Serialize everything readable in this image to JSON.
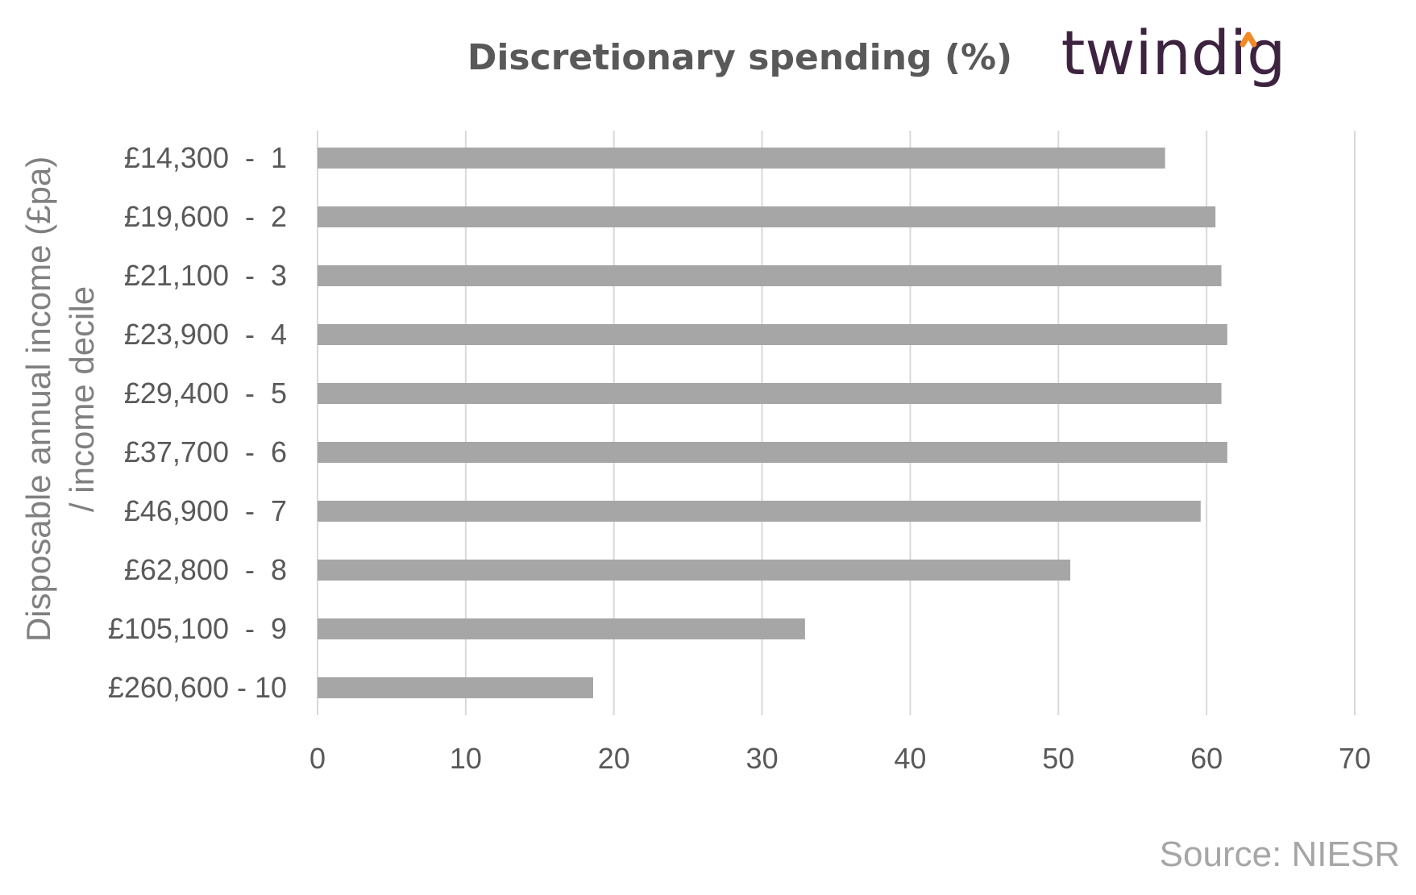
{
  "branding": {
    "logo_text": "twindig",
    "logo_colors": {
      "text": "#3d2340",
      "accent": "#f08a24"
    }
  },
  "source_note": "Source: NIESR",
  "chart_data": {
    "type": "bar",
    "orientation": "horizontal",
    "title": "Discretionary spending  (%)",
    "ylabel_lines": [
      "Disposable annual income (£pa)",
      "/ income decile"
    ],
    "xlabel": "",
    "categories": [
      "£14,300  -  1",
      "£19,600  -  2",
      "£21,100  -  3",
      "£23,900  -  4",
      "£29,400  -  5",
      "£37,700  -  6",
      "£46,900  -  7",
      "£62,800  -  8",
      "£105,100  -  9",
      "£260,600 - 10"
    ],
    "values": [
      57.2,
      60.6,
      61.0,
      61.4,
      61.0,
      61.4,
      59.6,
      50.8,
      32.9,
      18.6
    ],
    "xlim": [
      0,
      70
    ],
    "xticks": [
      0,
      10,
      20,
      30,
      40,
      50,
      60,
      70
    ],
    "grid": "vertical",
    "legend": "none",
    "colors": {
      "bar": "#a6a6a6",
      "grid": "#d9d9d9",
      "text": "#595959"
    }
  }
}
